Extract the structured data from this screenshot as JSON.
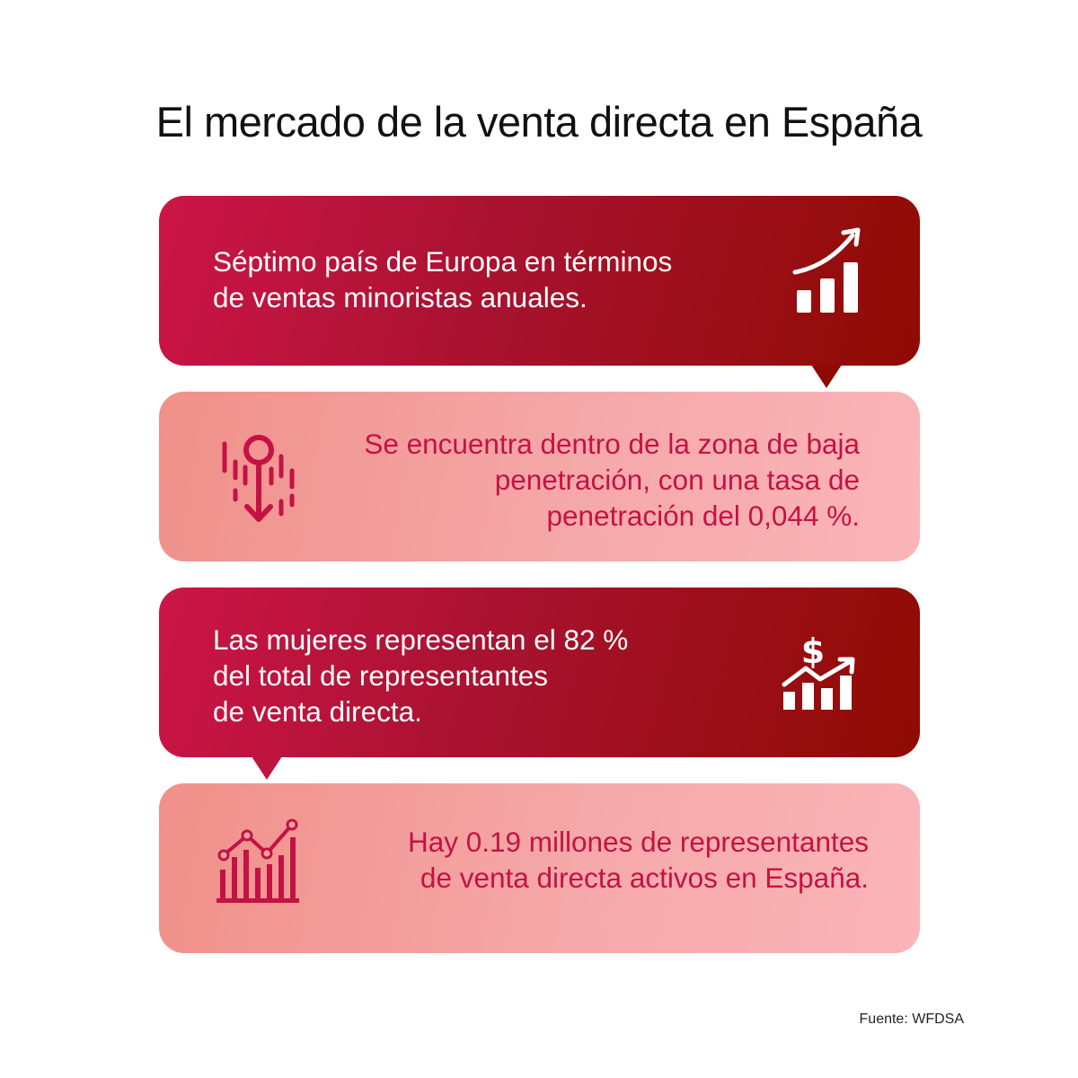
{
  "title": "El mercado de la venta directa en España",
  "colors": {
    "dark_card_start": "#cc1548",
    "dark_card_end": "#8f0b02",
    "light_card_start": "#f09089",
    "light_card_end": "#fbb5b9",
    "light_text": "#c41244"
  },
  "cards": [
    {
      "text": "Séptimo país de Europa en términos\nde ventas minoristas anuales.",
      "icon": "growth-bar-chart-arrow-icon"
    },
    {
      "text": "Se encuentra dentro de la zona de baja\npenetración, con una tasa de\npenetración del 0,044 %.",
      "icon": "low-penetration-arrow-down-icon"
    },
    {
      "text": "Las mujeres representan el 82 %\ndel total de representantes\nde venta directa.",
      "icon": "dollar-growth-chart-icon"
    },
    {
      "text": "Hay 0.19 millones de representantes\nde venta directa activos en España.",
      "icon": "line-and-bar-chart-icon"
    }
  ],
  "source": "Fuente: WFDSA"
}
